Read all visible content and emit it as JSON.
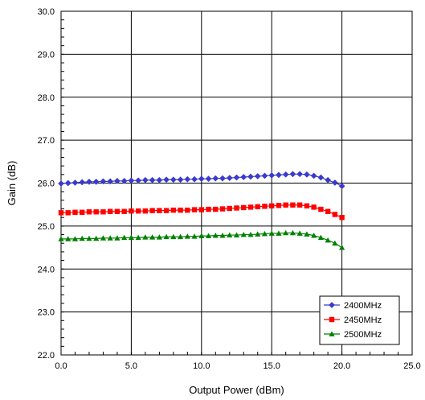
{
  "chart_data": {
    "type": "line",
    "title": "",
    "xlabel": "Output Power (dBm)",
    "ylabel": "Gain (dB)",
    "xlim": [
      0,
      25
    ],
    "ylim": [
      22,
      30
    ],
    "x_ticks": [
      "0.0",
      "5.0",
      "10.0",
      "15.0",
      "20.0",
      "25.0"
    ],
    "y_ticks": [
      "22.0",
      "23.0",
      "24.0",
      "25.0",
      "26.0",
      "27.0",
      "28.0",
      "29.0",
      "30.0"
    ],
    "grid": true,
    "legend_position": "bottom-right",
    "x": [
      0.0,
      0.5,
      1.0,
      1.5,
      2.0,
      2.5,
      3.0,
      3.5,
      4.0,
      4.5,
      5.0,
      5.5,
      6.0,
      6.5,
      7.0,
      7.5,
      8.0,
      8.5,
      9.0,
      9.5,
      10.0,
      10.5,
      11.0,
      11.5,
      12.0,
      12.5,
      13.0,
      13.5,
      14.0,
      14.5,
      15.0,
      15.5,
      16.0,
      16.5,
      17.0,
      17.5,
      18.0,
      18.5,
      19.0,
      19.5,
      20.0
    ],
    "series": [
      {
        "name": "2400MHz",
        "color": "#3a3acd",
        "marker": "diamond",
        "values": [
          25.99,
          26.0,
          26.01,
          26.02,
          26.03,
          26.03,
          26.04,
          26.04,
          26.05,
          26.05,
          26.06,
          26.06,
          26.07,
          26.07,
          26.07,
          26.08,
          26.08,
          26.08,
          26.09,
          26.09,
          26.1,
          26.1,
          26.11,
          26.11,
          26.12,
          26.13,
          26.14,
          26.15,
          26.16,
          26.17,
          26.18,
          26.19,
          26.2,
          26.21,
          26.21,
          26.2,
          26.17,
          26.13,
          26.07,
          26.01,
          25.93
        ]
      },
      {
        "name": "2450MHz",
        "color": "#ff0000",
        "marker": "square",
        "values": [
          25.31,
          25.31,
          25.32,
          25.32,
          25.33,
          25.33,
          25.33,
          25.34,
          25.34,
          25.34,
          25.35,
          25.35,
          25.35,
          25.36,
          25.36,
          25.36,
          25.37,
          25.37,
          25.37,
          25.38,
          25.38,
          25.39,
          25.39,
          25.4,
          25.41,
          25.42,
          25.43,
          25.44,
          25.45,
          25.46,
          25.47,
          25.48,
          25.49,
          25.49,
          25.49,
          25.47,
          25.44,
          25.39,
          25.34,
          25.27,
          25.2
        ]
      },
      {
        "name": "2500MHz",
        "color": "#008000",
        "marker": "triangle",
        "values": [
          24.7,
          24.7,
          24.7,
          24.71,
          24.71,
          24.71,
          24.72,
          24.72,
          24.72,
          24.73,
          24.73,
          24.73,
          24.74,
          24.74,
          24.74,
          24.75,
          24.75,
          24.75,
          24.76,
          24.76,
          24.77,
          24.77,
          24.78,
          24.78,
          24.79,
          24.79,
          24.8,
          24.8,
          24.81,
          24.82,
          24.83,
          24.83,
          24.84,
          24.84,
          24.83,
          24.81,
          24.78,
          24.73,
          24.67,
          24.6,
          24.5
        ]
      }
    ]
  }
}
